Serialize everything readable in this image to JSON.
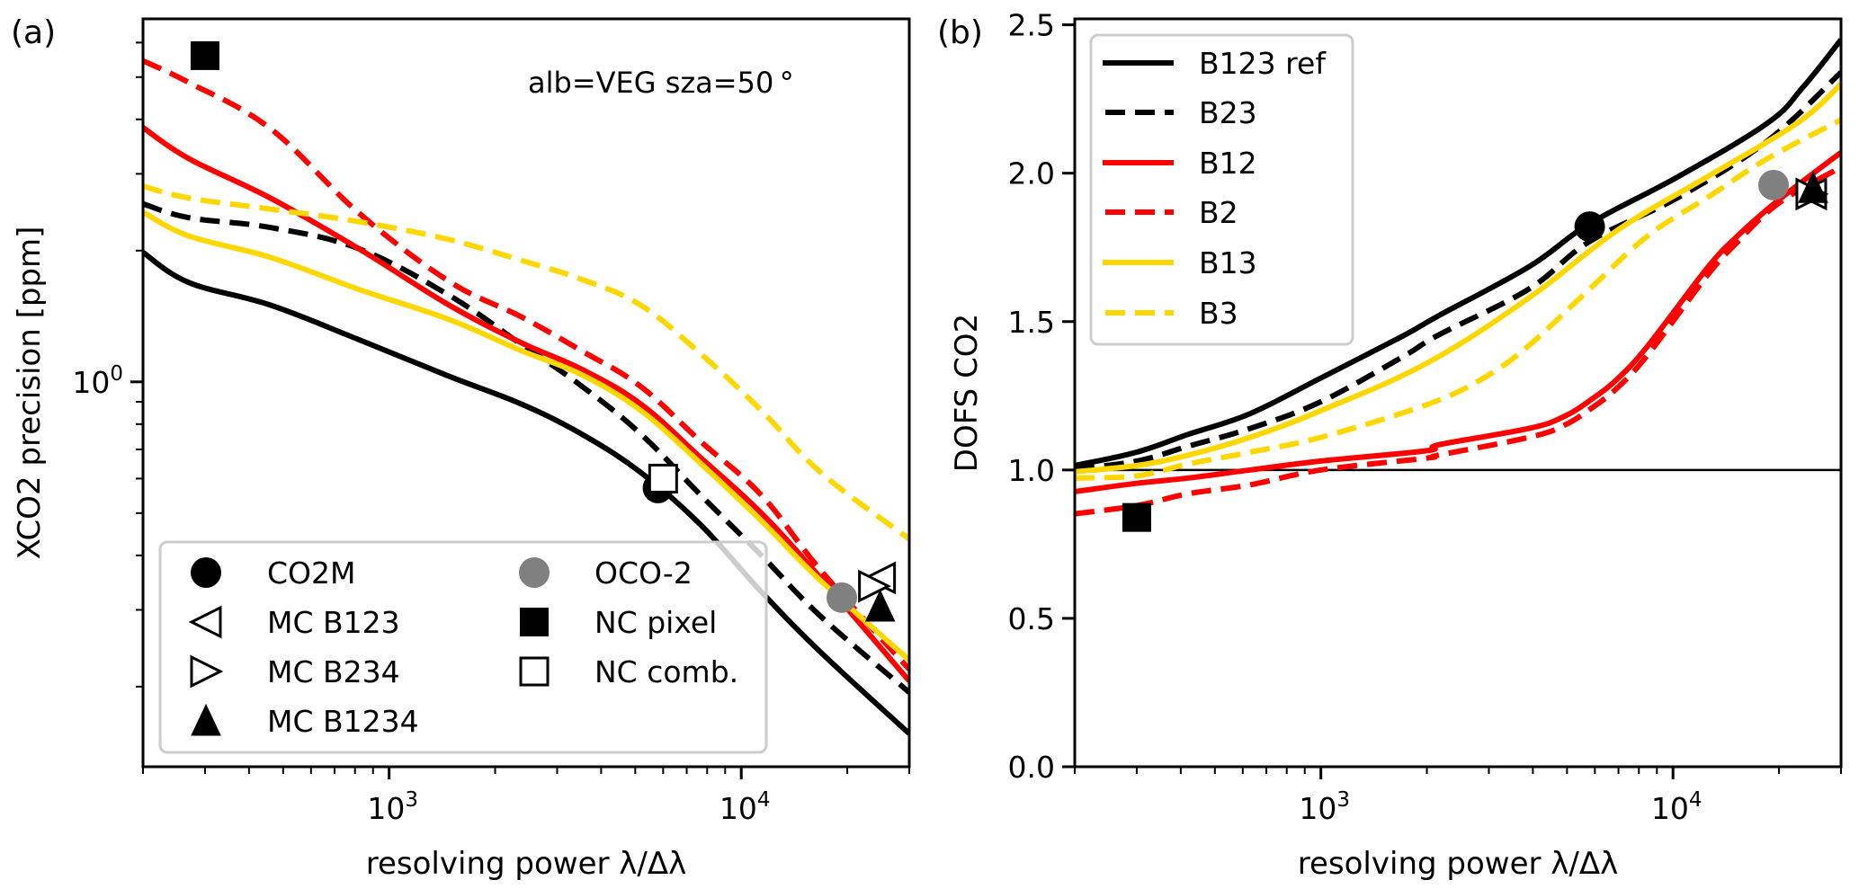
{
  "figure": {
    "panels": [
      "(a)",
      "(b)"
    ]
  },
  "chart_data": [
    {
      "type": "line",
      "panel_label": "(a)",
      "title": "",
      "annotation": "alb=VEG sza=50 °",
      "xlabel": "resolving power λ/Δλ",
      "ylabel": "XCO2 precision [ppm]",
      "xscale": "log",
      "yscale": "log",
      "xlim": [
        200,
        30000
      ],
      "ylim": [
        0.131,
        6.8
      ],
      "xticks": [
        {
          "value": 1000,
          "base": "10",
          "exp": "3"
        },
        {
          "value": 10000,
          "base": "10",
          "exp": "4"
        }
      ],
      "yticks": [
        {
          "value": 1,
          "base": "10",
          "exp": "0"
        }
      ],
      "grid": false,
      "legend_placement": "lower-left",
      "series": [
        {
          "name": "B123 ref",
          "color": "#000000",
          "style": "solid",
          "x": [
            200,
            270,
            460,
            820,
            1480,
            2370,
            3510,
            5180,
            7670,
            11400,
            16800,
            30000
          ],
          "y": [
            1.98,
            1.69,
            1.5,
            1.25,
            1.03,
            0.89,
            0.76,
            0.62,
            0.47,
            0.33,
            0.24,
            0.156
          ]
        },
        {
          "name": "B23",
          "color": "#000000",
          "style": "dashed",
          "x": [
            200,
            270,
            460,
            820,
            1480,
            2370,
            3510,
            5180,
            7670,
            11400,
            16800,
            30000
          ],
          "y": [
            2.56,
            2.38,
            2.26,
            2.02,
            1.58,
            1.22,
            0.98,
            0.76,
            0.55,
            0.4,
            0.29,
            0.194
          ]
        },
        {
          "name": "B12",
          "color": "#ff0000",
          "style": "solid",
          "x": [
            200,
            270,
            460,
            820,
            1480,
            2370,
            3510,
            5180,
            7670,
            11400,
            16800,
            30000
          ],
          "y": [
            3.83,
            3.25,
            2.64,
            2.02,
            1.5,
            1.23,
            1.07,
            0.89,
            0.67,
            0.5,
            0.355,
            0.206
          ]
        },
        {
          "name": "B2",
          "color": "#ff0000",
          "style": "dashed",
          "x": [
            200,
            270,
            460,
            820,
            1480,
            2370,
            3510,
            5180,
            7670,
            11400,
            16800,
            30000
          ],
          "y": [
            5.45,
            4.86,
            3.81,
            2.44,
            1.7,
            1.41,
            1.18,
            0.976,
            0.73,
            0.55,
            0.37,
            0.219
          ]
        },
        {
          "name": "B13",
          "color": "#ffd700",
          "style": "solid",
          "x": [
            200,
            270,
            460,
            820,
            1480,
            2370,
            3510,
            5180,
            7670,
            11400,
            16800,
            30000
          ],
          "y": [
            2.45,
            2.16,
            1.93,
            1.63,
            1.39,
            1.18,
            1.04,
            0.86,
            0.65,
            0.48,
            0.35,
            0.23
          ]
        },
        {
          "name": "B3",
          "color": "#ffd700",
          "style": "dashed",
          "x": [
            200,
            270,
            460,
            820,
            1480,
            2370,
            3510,
            5180,
            7670,
            11400,
            16800,
            30000
          ],
          "y": [
            2.81,
            2.64,
            2.49,
            2.33,
            2.12,
            1.9,
            1.72,
            1.5,
            1.16,
            0.86,
            0.62,
            0.436
          ]
        }
      ],
      "markers": [
        {
          "name": "CO2M",
          "marker": "circle",
          "fill": "#000000",
          "x": 5800,
          "y": 0.571
        },
        {
          "name": "MC B123",
          "marker": "triangle-left-open",
          "fill": "#ffffff",
          "x": 24800,
          "y": 0.355
        },
        {
          "name": "MC B234",
          "marker": "triangle-right-open",
          "fill": "#ffffff",
          "x": 23800,
          "y": 0.34
        },
        {
          "name": "MC B1234",
          "marker": "triangle-up",
          "fill": "#000000",
          "x": 24800,
          "y": 0.305
        },
        {
          "name": "OCO-2",
          "marker": "circle",
          "fill": "#808080",
          "x": 19300,
          "y": 0.32
        },
        {
          "name": "NC pixel",
          "marker": "square",
          "fill": "#000000",
          "x": 300,
          "y": 5.6
        },
        {
          "name": "NC comb.",
          "marker": "square-open",
          "fill": "#ffffff",
          "x": 6000,
          "y": 0.6
        }
      ],
      "legend": {
        "columns": [
          [
            {
              "label": "CO2M",
              "marker": "circle",
              "fill": "#000000"
            },
            {
              "label": "MC B123",
              "marker": "triangle-left-open",
              "fill": "#ffffff"
            },
            {
              "label": "MC B234",
              "marker": "triangle-right-open",
              "fill": "#ffffff"
            },
            {
              "label": "MC B1234",
              "marker": "triangle-up",
              "fill": "#000000"
            }
          ],
          [
            {
              "label": "OCO-2",
              "marker": "circle",
              "fill": "#808080"
            },
            {
              "label": "NC pixel",
              "marker": "square",
              "fill": "#000000"
            },
            {
              "label": "NC comb.",
              "marker": "square-open",
              "fill": "#ffffff"
            }
          ]
        ]
      }
    },
    {
      "type": "line",
      "panel_label": "(b)",
      "title": "",
      "xlabel": "resolving power λ/Δλ",
      "ylabel": "DOFS CO2",
      "xscale": "log",
      "yscale": "linear",
      "xlim": [
        200,
        30000
      ],
      "ylim": [
        0,
        2.52
      ],
      "xticks": [
        {
          "value": 1000,
          "base": "10",
          "exp": "3"
        },
        {
          "value": 10000,
          "base": "10",
          "exp": "4"
        }
      ],
      "yticks": [
        {
          "value": 0.0,
          "label": "0.0"
        },
        {
          "value": 0.5,
          "label": "0.5"
        },
        {
          "value": 1.0,
          "label": "1.0"
        },
        {
          "value": 1.5,
          "label": "1.5"
        },
        {
          "value": 2.0,
          "label": "2.0"
        },
        {
          "value": 2.5,
          "label": "2.5"
        }
      ],
      "reference_line": {
        "y": 1.0,
        "color": "#000000"
      },
      "grid": false,
      "legend_placement": "upper-left",
      "series": [
        {
          "name": "B123 ref",
          "color": "#000000",
          "style": "solid",
          "x": [
            200,
            300,
            420,
            630,
            1000,
            1700,
            2160,
            3900,
            5800,
            10400,
            18600,
            23400,
            30000
          ],
          "y": [
            1.015,
            1.06,
            1.12,
            1.19,
            1.31,
            1.45,
            1.52,
            1.685,
            1.83,
            1.99,
            2.17,
            2.29,
            2.45
          ]
        },
        {
          "name": "B23",
          "color": "#000000",
          "style": "dashed",
          "x": [
            200,
            300,
            420,
            630,
            1000,
            1700,
            2160,
            3900,
            5800,
            10400,
            18600,
            30000
          ],
          "y": [
            1.003,
            1.03,
            1.08,
            1.14,
            1.23,
            1.38,
            1.455,
            1.61,
            1.77,
            1.92,
            2.11,
            2.34
          ]
        },
        {
          "name": "B12",
          "color": "#ff0000",
          "style": "solid",
          "x": [
            200,
            300,
            420,
            630,
            1000,
            2000,
            2160,
            3900,
            4900,
            5900,
            7000,
            8500,
            12600,
            15300,
            18600,
            22600,
            30000
          ],
          "y": [
            0.927,
            0.955,
            0.973,
            1.0,
            1.03,
            1.065,
            1.085,
            1.14,
            1.18,
            1.24,
            1.31,
            1.42,
            1.685,
            1.79,
            1.88,
            1.96,
            2.07
          ]
        },
        {
          "name": "B2",
          "color": "#ff0000",
          "style": "dashed",
          "x": [
            200,
            300,
            420,
            630,
            1000,
            2000,
            2160,
            3900,
            4900,
            5900,
            7000,
            8500,
            12600,
            15300,
            18600,
            22600,
            30000
          ],
          "y": [
            0.852,
            0.88,
            0.92,
            0.95,
            1.0,
            1.04,
            1.05,
            1.11,
            1.15,
            1.21,
            1.28,
            1.39,
            1.66,
            1.77,
            1.87,
            1.94,
            2.02
          ]
        },
        {
          "name": "B13",
          "color": "#ffd700",
          "style": "solid",
          "x": [
            200,
            300,
            420,
            630,
            1000,
            2000,
            3900,
            7000,
            12600,
            22600,
            30000
          ],
          "y": [
            0.994,
            1.015,
            1.05,
            1.11,
            1.2,
            1.36,
            1.58,
            1.81,
            1.99,
            2.17,
            2.3
          ]
        },
        {
          "name": "B3",
          "color": "#ffd700",
          "style": "dashed",
          "x": [
            200,
            300,
            420,
            630,
            1000,
            2000,
            2900,
            3900,
            5800,
            8500,
            12600,
            18600,
            30000
          ],
          "y": [
            0.973,
            0.98,
            1.02,
            1.06,
            1.11,
            1.22,
            1.31,
            1.42,
            1.61,
            1.79,
            1.92,
            2.05,
            2.18
          ]
        }
      ],
      "markers": [
        {
          "name": "NC pixel",
          "marker": "square",
          "fill": "#000000",
          "x": 300,
          "y": 0.84
        },
        {
          "name": "CO2M",
          "marker": "circle",
          "fill": "#000000",
          "x": 5800,
          "y": 1.82
        },
        {
          "name": "OCO-2",
          "marker": "circle",
          "fill": "#808080",
          "x": 19300,
          "y": 1.96
        },
        {
          "name": "MC B123",
          "marker": "triangle-left-open",
          "fill": "#ffffff",
          "x": 24700,
          "y": 1.93
        },
        {
          "name": "MC B234",
          "marker": "triangle-right-open",
          "fill": "#ffffff",
          "x": 24700,
          "y": 1.93
        },
        {
          "name": "MC B1234",
          "marker": "triangle-up",
          "fill": "#000000",
          "x": 25000,
          "y": 1.95
        }
      ],
      "legend": {
        "entries": [
          {
            "label": "B123 ref",
            "color": "#000000",
            "style": "solid"
          },
          {
            "label": "B23",
            "color": "#000000",
            "style": "dashed"
          },
          {
            "label": "B12",
            "color": "#ff0000",
            "style": "solid"
          },
          {
            "label": "B2",
            "color": "#ff0000",
            "style": "dashed"
          },
          {
            "label": "B13",
            "color": "#ffd700",
            "style": "solid"
          },
          {
            "label": "B3",
            "color": "#ffd700",
            "style": "dashed"
          }
        ]
      }
    }
  ]
}
